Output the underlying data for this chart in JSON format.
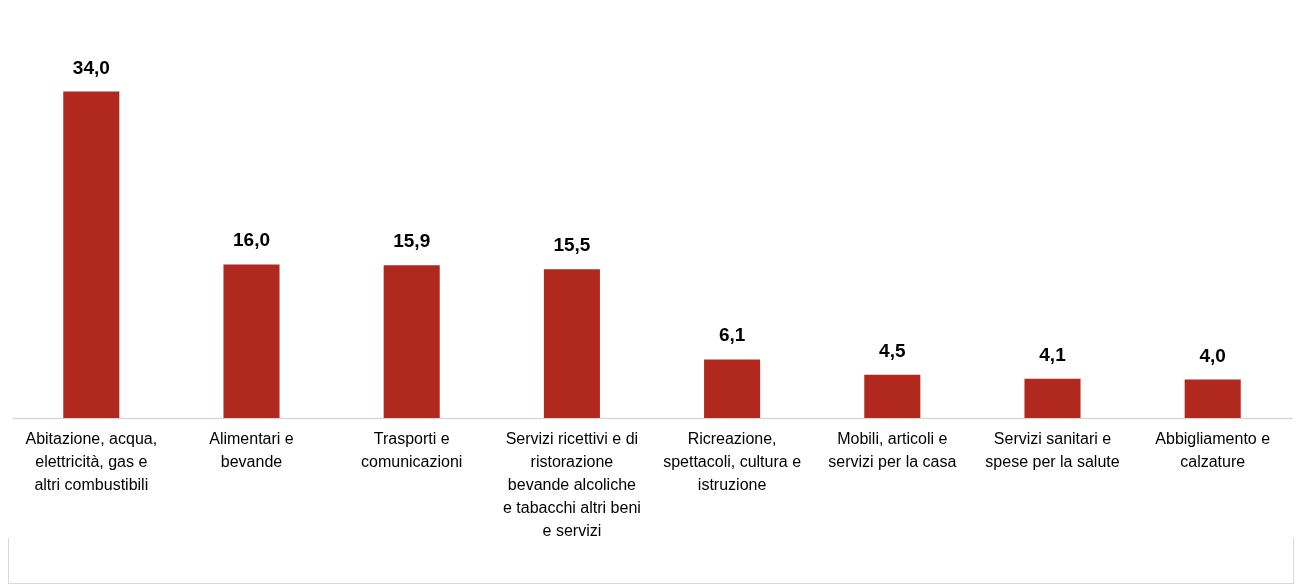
{
  "chart_data": {
    "type": "bar",
    "categories": [
      "Abitazione, acqua, elettricità, gas e altri combustibili",
      "Alimentari e bevande",
      "Trasporti e comunicazioni",
      "Servizi ricettivi e di ristorazione bevande alcoliche e tabacchi altri beni e servizi",
      "Ricreazione, spettacoli, cultura e istruzione",
      "Mobili, articoli e servizi per la casa",
      "Servizi sanitari e spese per la salute",
      "Abbigliamento e calzature"
    ],
    "values": [
      34.0,
      16.0,
      15.9,
      15.5,
      6.1,
      4.5,
      4.1,
      4.0
    ],
    "value_labels": [
      "34,0",
      "16,0",
      "15,9",
      "15,5",
      "6,1",
      "4,5",
      "4,1",
      "4,0"
    ],
    "color": "#b0281e"
  }
}
